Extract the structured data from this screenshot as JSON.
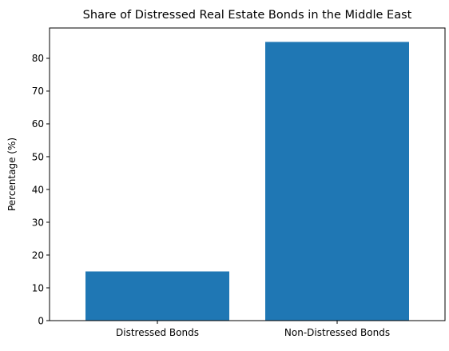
{
  "chart_data": {
    "type": "bar",
    "title": "Share of Distressed Real Estate Bonds in the Middle East",
    "xlabel": "",
    "ylabel": "Percentage (%)",
    "categories": [
      "Distressed Bonds",
      "Non-Distressed Bonds"
    ],
    "values": [
      15,
      85
    ],
    "ylim": [
      0,
      89.25
    ],
    "yticks": [
      0,
      10,
      20,
      30,
      40,
      50,
      60,
      70,
      80
    ],
    "grid": false,
    "legend": "none",
    "bar_color": "#1f77b4"
  }
}
